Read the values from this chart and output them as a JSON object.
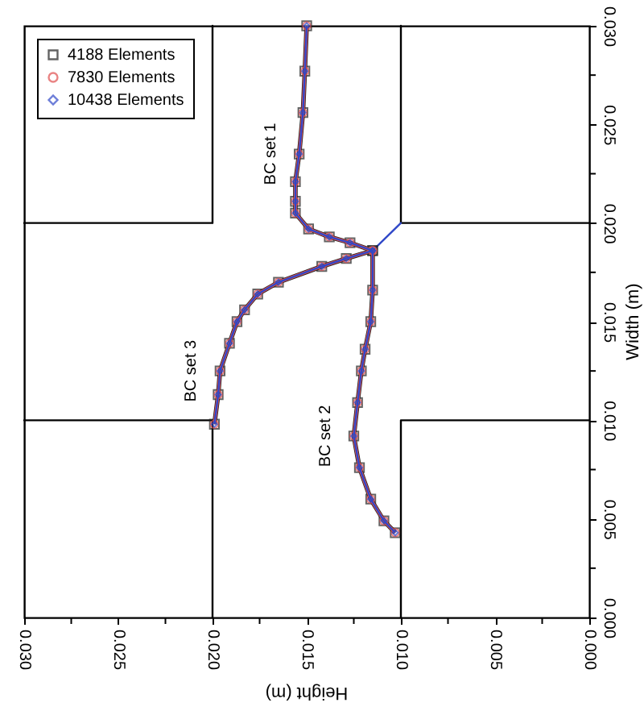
{
  "chart_data": {
    "type": "line",
    "xlabel": "Height (m)",
    "ylabel": "Width (m)",
    "xlim": [
      0.03,
      0
    ],
    "ylim": [
      0,
      0.03
    ],
    "xticks": [
      {
        "value": 0,
        "label": "0.000"
      },
      {
        "value": 0.0025,
        "label": null
      },
      {
        "value": 0.005,
        "label": "0.005"
      },
      {
        "value": 0.0075,
        "label": null
      },
      {
        "value": 0.01,
        "label": "0.010"
      },
      {
        "value": 0.0125,
        "label": null
      },
      {
        "value": 0.015,
        "label": "0.015"
      },
      {
        "value": 0.0175,
        "label": null
      },
      {
        "value": 0.02,
        "label": "0.020"
      },
      {
        "value": 0.0225,
        "label": null
      },
      {
        "value": 0.025,
        "label": "0.025"
      },
      {
        "value": 0.0275,
        "label": null
      },
      {
        "value": 0.03,
        "label": "0.030"
      }
    ],
    "yticks": [
      {
        "value": 0,
        "label": "0.000"
      },
      {
        "value": 0.0025,
        "label": null
      },
      {
        "value": 0.005,
        "label": "0.005"
      },
      {
        "value": 0.0075,
        "label": null
      },
      {
        "value": 0.01,
        "label": "0.010"
      },
      {
        "value": 0.0125,
        "label": null
      },
      {
        "value": 0.015,
        "label": "0.015"
      },
      {
        "value": 0.0175,
        "label": null
      },
      {
        "value": 0.02,
        "label": "0.020"
      },
      {
        "value": 0.0225,
        "label": null
      },
      {
        "value": 0.025,
        "label": "0.025"
      },
      {
        "value": 0.0275,
        "label": null
      },
      {
        "value": 0.03,
        "label": "0.030"
      }
    ],
    "legend": "top left",
    "annotations": [
      {
        "text": "BC set 1",
        "x": 0.0154,
        "y": 0.0235
      },
      {
        "text": "BC set 2",
        "x": 0.0125,
        "y": 0.0092
      },
      {
        "text": "BC set 3",
        "x": 0.0196,
        "y": 0.0125
      }
    ],
    "series": [
      {
        "type": "line",
        "color": "#000000",
        "marker": "none",
        "values": [
          0.03,
          0.02,
          0.02,
          null,
          0.03,
          0.02,
          0.02,
          null,
          0,
          0.01,
          0.01,
          null,
          0,
          0.01,
          0.01
        ],
        "x": [
          0.02,
          0.02,
          0.03,
          null,
          0.01,
          0.01,
          0,
          null,
          0.02,
          0.02,
          0.03,
          null,
          0.01,
          0.01,
          0
        ]
      },
      {
        "name": "4188 Elements",
        "color": "#222222",
        "marker": "square",
        "values": [
          0.03,
          0.0277,
          0.0256,
          0.0235,
          0.0221,
          0.0211,
          0.0205,
          0.0197,
          0.0193,
          0.019,
          0.0186,
          0.0166,
          0.015,
          0.0136,
          0.0125,
          0.0109,
          0.0092,
          0.0076,
          0.006,
          0.0049,
          0.0043,
          null,
          0.0186,
          0.0182,
          0.0178,
          0.017,
          0.0164,
          0.0156,
          0.015,
          0.0139,
          0.0125,
          0.0113,
          0.0098
        ],
        "x": [
          0.015,
          0.0151,
          0.0152,
          0.0154,
          0.0156,
          0.0156,
          0.0156,
          0.0149,
          0.0138,
          0.0127,
          0.0115,
          0.0115,
          0.0116,
          0.0119,
          0.0121,
          0.0123,
          0.0125,
          0.0122,
          0.0116,
          0.0109,
          0.0103,
          null,
          0.0115,
          0.0129,
          0.0142,
          0.0165,
          0.0176,
          0.0183,
          0.0187,
          0.0191,
          0.0196,
          0.0197,
          0.0199
        ]
      },
      {
        "name": "7830 Elements",
        "color": "#e05050",
        "marker": "circle",
        "values": [
          0.03,
          0.0277,
          0.0256,
          0.0235,
          0.0221,
          0.0211,
          0.0205,
          0.0197,
          0.0193,
          0.019,
          0.0186,
          0.0166,
          0.015,
          0.0136,
          0.0125,
          0.0109,
          0.0092,
          0.0076,
          0.006,
          0.0049,
          0.0043,
          null,
          0.0186,
          0.0182,
          0.0178,
          0.017,
          0.0164,
          0.0156,
          0.015,
          0.0139,
          0.0125,
          0.0113,
          0.0098
        ],
        "x": [
          0.015,
          0.0151,
          0.0152,
          0.0154,
          0.0156,
          0.0156,
          0.0156,
          0.0149,
          0.0138,
          0.0127,
          0.0115,
          0.0115,
          0.0116,
          0.0119,
          0.0121,
          0.0123,
          0.0125,
          0.0122,
          0.0116,
          0.0109,
          0.0103,
          null,
          0.0115,
          0.0129,
          0.0142,
          0.0165,
          0.0176,
          0.0183,
          0.0187,
          0.0191,
          0.0196,
          0.0197,
          0.0199
        ]
      },
      {
        "name": "10438 Elements",
        "color": "#3048c8",
        "marker": "diamond",
        "values": [
          0.03,
          0.0277,
          0.0256,
          0.0235,
          0.0221,
          0.0211,
          0.0205,
          0.0197,
          0.0193,
          0.019,
          0.0186,
          0.0166,
          0.015,
          0.0136,
          0.0125,
          0.0109,
          0.0092,
          0.0076,
          0.006,
          0.0049,
          0.0043,
          null,
          0.0186,
          0.0182,
          0.0178,
          0.017,
          0.0164,
          0.0156,
          0.015,
          0.0139,
          0.0125,
          0.0113,
          0.0098
        ],
        "x": [
          0.015,
          0.0151,
          0.0152,
          0.0154,
          0.0156,
          0.0156,
          0.0156,
          0.0149,
          0.0138,
          0.0127,
          0.0115,
          0.0115,
          0.0116,
          0.0119,
          0.0121,
          0.0123,
          0.0125,
          0.0122,
          0.0116,
          0.0109,
          0.0103,
          null,
          0.0115,
          0.0129,
          0.0142,
          0.0165,
          0.0176,
          0.0183,
          0.0187,
          0.0191,
          0.0196,
          0.0197,
          0.0199
        ]
      },
      {
        "type": "line",
        "color": "#3048c8",
        "marker": "none",
        "values": [
          0.0186,
          0.02
        ],
        "x": [
          0.0115,
          0.01
        ]
      }
    ]
  }
}
